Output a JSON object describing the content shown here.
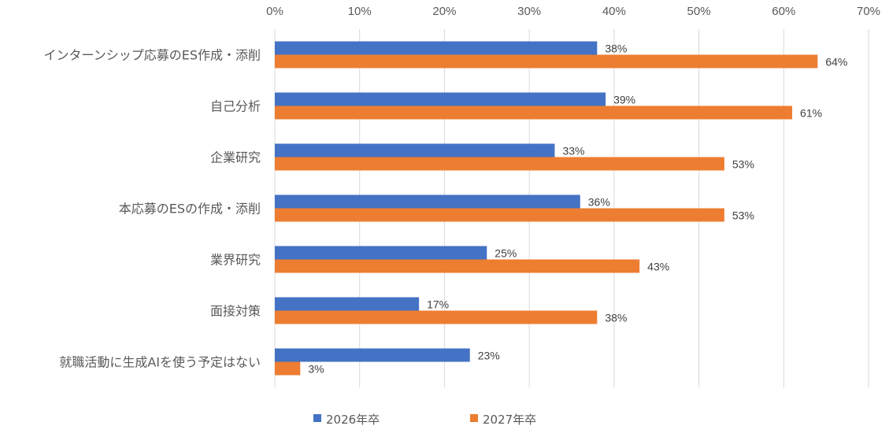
{
  "chart_data": {
    "type": "bar",
    "orientation": "horizontal",
    "categories": [
      "インターンシップ応募のES作成・添削",
      "自己分析",
      "企業研究",
      "本応募のESの作成・添削",
      "業界研究",
      "面接対策",
      "就職活動に生成AIを使う予定はない"
    ],
    "series": [
      {
        "name": "2026年卒",
        "values": [
          38,
          39,
          33,
          36,
          25,
          17,
          23
        ],
        "color": "#4472C4"
      },
      {
        "name": "2027年卒",
        "values": [
          64,
          61,
          53,
          53,
          43,
          38,
          3
        ],
        "color": "#ED7D31"
      }
    ],
    "xlim": [
      0,
      70
    ],
    "xticks": [
      0,
      10,
      20,
      30,
      40,
      50,
      60,
      70
    ],
    "tick_suffix": "%",
    "value_suffix": "%",
    "axis_position": "top",
    "grid": true,
    "legend": "bottom"
  }
}
